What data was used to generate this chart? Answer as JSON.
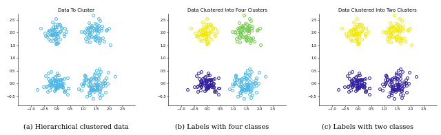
{
  "title1": "Data To Cluster",
  "title2": "Data Clustered Into Four Clusters",
  "title3": "Data Clustered Into Two Clusters",
  "caption1": "(a) Hierarchical clustered data",
  "caption2": "(b) Labels with four classes",
  "caption3": "(c) Labels with two classes",
  "xlim": [
    -1.5,
    3.0
  ],
  "ylim": [
    -0.85,
    2.75
  ],
  "xticks": [
    -1,
    -0.5,
    0,
    0.5,
    1,
    1.5,
    2,
    2.5
  ],
  "yticks": [
    -0.5,
    0,
    0.5,
    1,
    1.5,
    2,
    2.5
  ],
  "cluster_centers": [
    [
      -0.05,
      2.0
    ],
    [
      1.45,
      2.0
    ],
    [
      -0.05,
      0.0
    ],
    [
      1.45,
      0.0
    ]
  ],
  "cluster_stds": [
    0.22,
    0.25,
    0.22,
    0.25
  ],
  "n_points": [
    60,
    65,
    80,
    90
  ],
  "single_color": "#4db8e8",
  "colors_four": [
    "#f2ea00",
    "#6dcc44",
    "#3020a0",
    "#4db8e8"
  ],
  "colors_two_top": "#f2ea00",
  "colors_two_bottom": "#3020a0",
  "seed": 42,
  "marker": "o",
  "markersize": 2.8,
  "linewidth": 0.7,
  "title_fontsize": 5.0,
  "tick_fontsize": 3.8,
  "caption_fontsize": 7.0
}
